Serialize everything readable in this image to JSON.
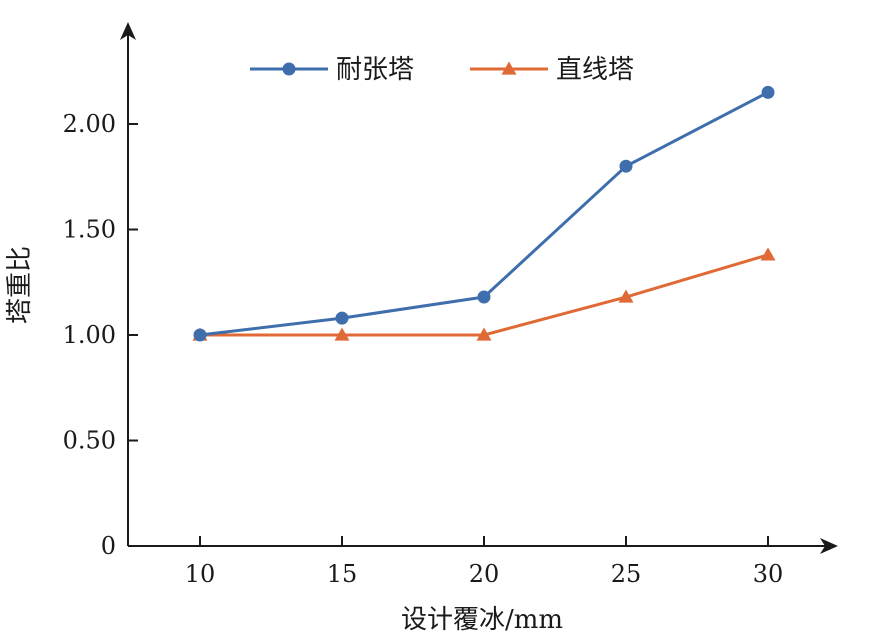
{
  "chart_data": {
    "type": "line",
    "xlabel": "设计覆冰/mm",
    "ylabel": "塔重比",
    "categories": [
      "10",
      "15",
      "20",
      "25",
      "30"
    ],
    "x": [
      10,
      15,
      20,
      25,
      30
    ],
    "ylim": [
      0,
      2.2
    ],
    "yticks": [
      0,
      0.5,
      1.0,
      1.5,
      2.0
    ],
    "ytick_labels": [
      "0",
      "0.50",
      "1.00",
      "1.50",
      "2.00"
    ],
    "grid": false,
    "legend_position": "top",
    "series": [
      {
        "name": "耐张塔",
        "values": [
          1.0,
          1.08,
          1.18,
          1.8,
          2.15
        ],
        "color": "#3f6ead",
        "marker": "circle"
      },
      {
        "name": "直线塔",
        "values": [
          1.0,
          1.0,
          1.0,
          1.18,
          1.38
        ],
        "color": "#e06a35",
        "marker": "triangle"
      }
    ],
    "axis_color": "#1a1a1a"
  }
}
